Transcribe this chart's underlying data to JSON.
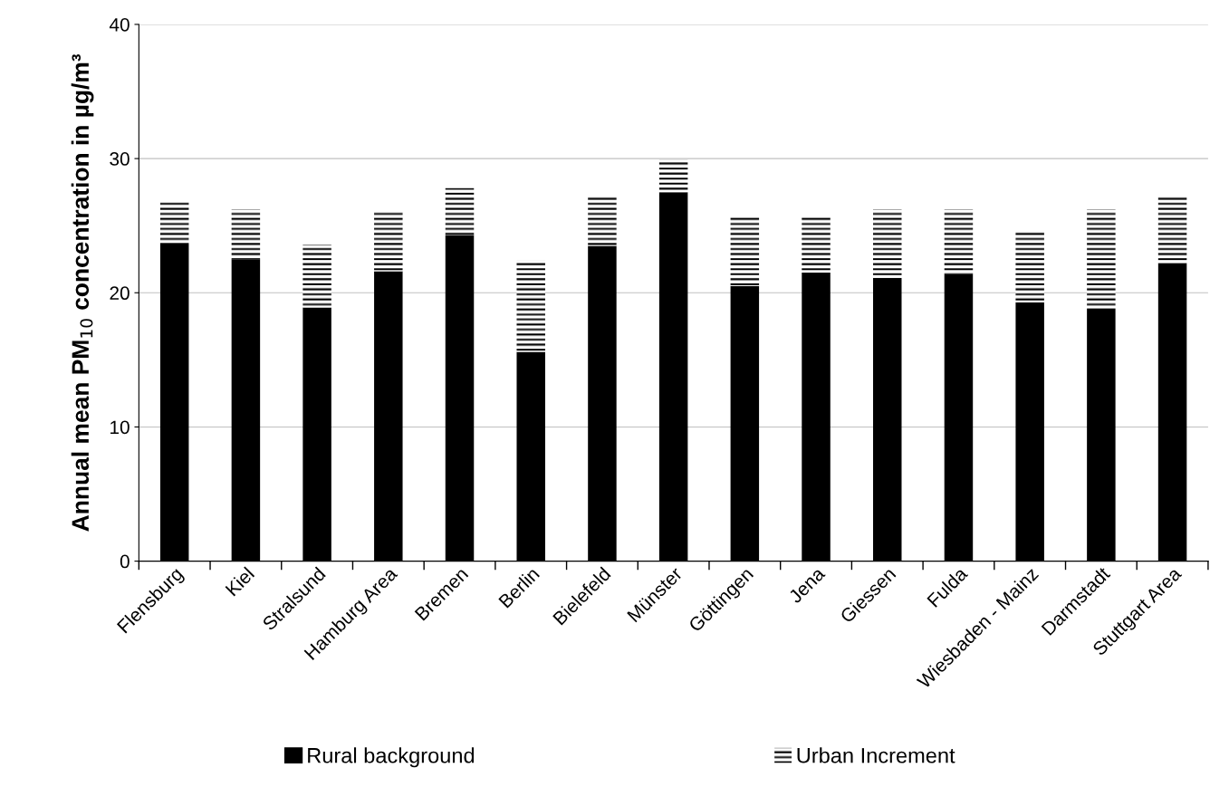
{
  "chart_data": {
    "type": "bar",
    "stacked": true,
    "ylabel": "Annual mean PM$_{10}$ concentration in µg/m³",
    "categories": [
      "Flensburg",
      "Kiel",
      "Stralsund",
      "Hamburg Area",
      "Bremen",
      "Berlin",
      "Bielefeld",
      "Münster",
      "Göttingen",
      "Jena",
      "Giessen",
      "Fulda",
      "Wiesbaden - Mainz",
      "Darmstadt",
      "Stuttgart Area"
    ],
    "series": [
      {
        "name": "Rural background",
        "color": "#000000",
        "values": [
          23.6,
          22.5,
          18.9,
          21.6,
          24.3,
          15.6,
          23.5,
          27.5,
          20.5,
          21.5,
          21.1,
          21.4,
          19.3,
          18.8,
          22.2
        ]
      },
      {
        "name": "Urban Increment",
        "color": "#000000",
        "values": [
          3.2,
          3.7,
          4.7,
          4.5,
          3.5,
          6.8,
          3.7,
          2.4,
          5.2,
          4.2,
          5.1,
          4.8,
          5.3,
          7.4,
          5.1
        ]
      }
    ],
    "ylim": [
      0,
      40
    ],
    "yticks": [
      0,
      10,
      20,
      30,
      40
    ],
    "grid": "y",
    "legend": "bottom"
  }
}
